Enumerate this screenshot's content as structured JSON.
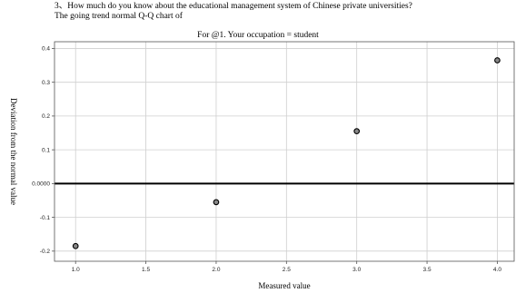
{
  "title": {
    "line1": "3、How much do you know about the educational management system of Chinese private universities?",
    "line2": "The going trend normal Q-Q chart of"
  },
  "chart_data": {
    "type": "scatter",
    "title": "3、How much do you know about the educational management system of Chinese private universities? The going trend normal Q-Q chart of",
    "subtitle": "For @1. Your occupation = student",
    "xlabel": "Measured value",
    "ylabel": "Deviation from the normal value",
    "xlim": [
      0.85,
      4.12
    ],
    "ylim": [
      -0.23,
      0.42
    ],
    "x_ticks": [
      1.0,
      1.5,
      2.0,
      2.5,
      3.0,
      3.5,
      4.0
    ],
    "x_tick_labels": [
      "1.0",
      "1.5",
      "2.0",
      "2.5",
      "3.0",
      "3.5",
      "4.0"
    ],
    "y_ticks": [
      -0.2,
      -0.1,
      0.0,
      0.1,
      0.2,
      0.3,
      0.4
    ],
    "y_tick_labels": [
      "-0.2",
      "-0.1",
      "0.0000",
      "0.1",
      "0.2",
      "0.3",
      "0.4"
    ],
    "reference_line_y": 0.0,
    "grid": true,
    "points": [
      {
        "x": 1.0,
        "y": -0.185
      },
      {
        "x": 2.0,
        "y": -0.055
      },
      {
        "x": 3.0,
        "y": 0.155
      },
      {
        "x": 4.0,
        "y": 0.365
      }
    ],
    "colors": {
      "point_fill": "#888888",
      "point_stroke": "#000000",
      "grid": "#cfcfcf",
      "reference_line": "#000000"
    }
  }
}
